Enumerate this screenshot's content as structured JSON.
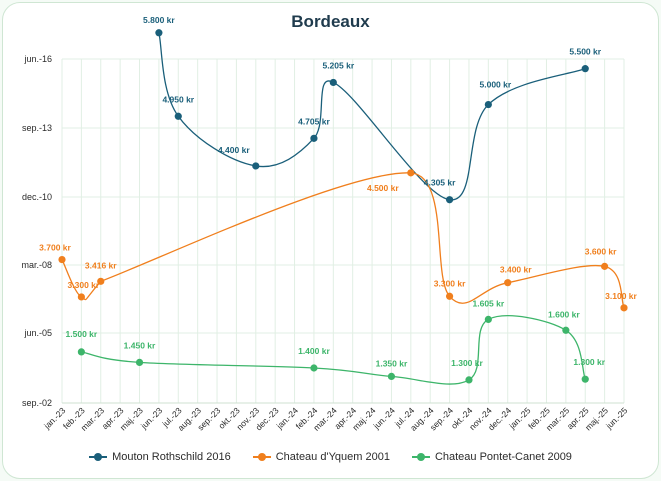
{
  "chart_data": {
    "type": "line",
    "title": "Bordeaux",
    "x_labels": [
      "jan.-23",
      "feb.-23",
      "mar.-23",
      "apr.-23",
      "maj.-23",
      "jun.-23",
      "jul.-23",
      "aug.-23",
      "sep.-23",
      "okt.-23",
      "nov.-23",
      "dec.-23",
      "jan.-24",
      "feb.-24",
      "mar.-24",
      "apr.-24",
      "maj.-24",
      "jun.-24",
      "jul.-24",
      "aug.-24",
      "sep.-24",
      "okt.-24",
      "nov.-24",
      "dec.-24",
      "jan.-25",
      "feb.-25",
      "mar.-25",
      "apr.-25",
      "maj.-25",
      "jun.-25"
    ],
    "y_tick_labels": [
      "sep.-02",
      "jun.-05",
      "mar.-08",
      "dec.-10",
      "sep.-13",
      "jun.-16"
    ],
    "grid": true,
    "legend_position": "bottom",
    "series": [
      {
        "name": "Mouton Rothschild 2016",
        "color": "#1a5f7a",
        "points": [
          {
            "x": 5.0,
            "y": 5.38,
            "label": "5.800 kr"
          },
          {
            "x": 6.0,
            "y": 4.17,
            "label": "4.950 kr"
          },
          {
            "x": 10.0,
            "y": 3.45,
            "label": "4.400 kr"
          },
          {
            "x": 13.0,
            "y": 3.85,
            "label": "4.705 kr"
          },
          {
            "x": 14.0,
            "y": 4.66,
            "label": "5.205 kr"
          },
          {
            "x": 20.0,
            "y": 2.96,
            "label": "4.305 kr"
          },
          {
            "x": 22.0,
            "y": 4.34,
            "label": "5.000 kr"
          },
          {
            "x": 27.0,
            "y": 4.86,
            "label": "5.500 kr"
          }
        ]
      },
      {
        "name": "Chateau d'Yquem 2001",
        "color": "#f07f1d",
        "points": [
          {
            "x": 0.0,
            "y": 2.08,
            "label": "3.700 kr"
          },
          {
            "x": 1.0,
            "y": 1.53,
            "label": "3.300 kr"
          },
          {
            "x": 2.0,
            "y": 1.76,
            "label": "3.416 kr"
          },
          {
            "x": 18.0,
            "y": 3.35,
            "label": "4.500 kr"
          },
          {
            "x": 20.0,
            "y": 1.54,
            "label": "3.300 kr"
          },
          {
            "x": 23.0,
            "y": 1.74,
            "label": "3.400 kr"
          },
          {
            "x": 28.0,
            "y": 1.98,
            "label": "3.600 kr"
          },
          {
            "x": 29.0,
            "y": 1.37,
            "label": "3.100 kr"
          }
        ]
      },
      {
        "name": "Chateau Pontet-Canet 2009",
        "color": "#3db56a",
        "points": [
          {
            "x": 1.0,
            "y": 0.73,
            "label": "1.500 kr"
          },
          {
            "x": 4.0,
            "y": 0.58,
            "label": "1.450 kr"
          },
          {
            "x": 13.0,
            "y": 0.5,
            "label": "1.400 kr"
          },
          {
            "x": 17.0,
            "y": 0.38,
            "label": "1.350 kr"
          },
          {
            "x": 21.0,
            "y": 0.33,
            "label": "1.300 kr"
          },
          {
            "x": 22.0,
            "y": 1.2,
            "label": "1.605 kr"
          },
          {
            "x": 26.0,
            "y": 1.04,
            "label": "1.600 kr"
          },
          {
            "x": 27.0,
            "y": 0.34,
            "label": "1.300 kr"
          }
        ]
      }
    ]
  }
}
